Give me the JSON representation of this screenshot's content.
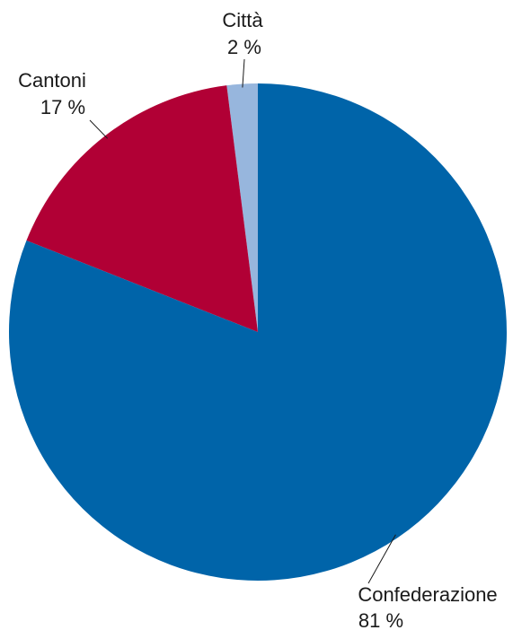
{
  "chart_data": {
    "type": "pie",
    "title": "",
    "slices": [
      {
        "label": "Città",
        "value": 2,
        "value_label": "2 %",
        "color": "#97b6dd"
      },
      {
        "label": "Cantoni",
        "value": 17,
        "value_label": "17 %",
        "color": "#b10035"
      },
      {
        "label": "Confederazione",
        "value": 81,
        "value_label": "81 %",
        "color": "#0064a9"
      }
    ],
    "start": "12 o'clock",
    "direction": "counter-clockwise",
    "legend": "none"
  }
}
